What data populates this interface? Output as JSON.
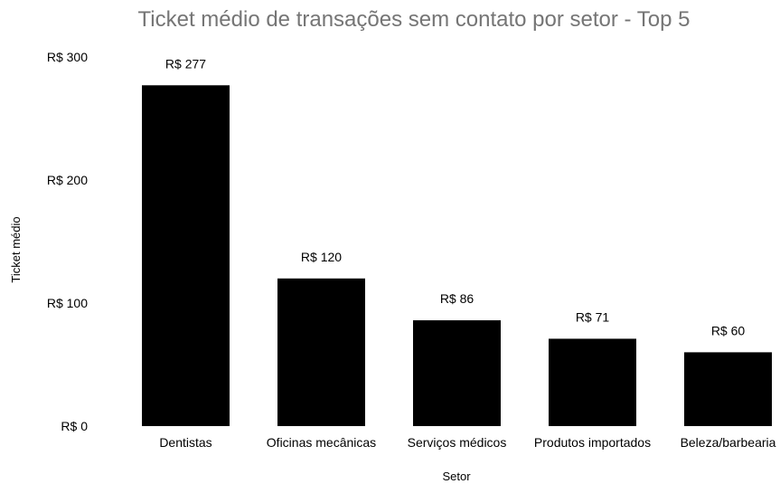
{
  "chart_data": {
    "type": "bar",
    "title": "Ticket médio de transações sem contato por setor - Top 5",
    "xlabel": "Setor",
    "ylabel": "Ticket médio",
    "categories": [
      "Dentistas",
      "Oficinas mecânicas",
      "Serviços médicos",
      "Produtos importados",
      "Beleza/barbearia"
    ],
    "values": [
      277,
      120,
      86,
      71,
      60
    ],
    "value_labels": [
      "R$ 277",
      "R$ 120",
      "R$ 86",
      "R$ 71",
      "R$ 60"
    ],
    "ylim": [
      0,
      300
    ],
    "y_ticks": [
      0,
      100,
      200,
      300
    ],
    "y_tick_labels": [
      "R$ 0",
      "R$ 100",
      "R$ 200",
      "R$ 300"
    ],
    "grid": false,
    "legend": "none",
    "bar_color": "#000000",
    "title_color": "#757575"
  }
}
